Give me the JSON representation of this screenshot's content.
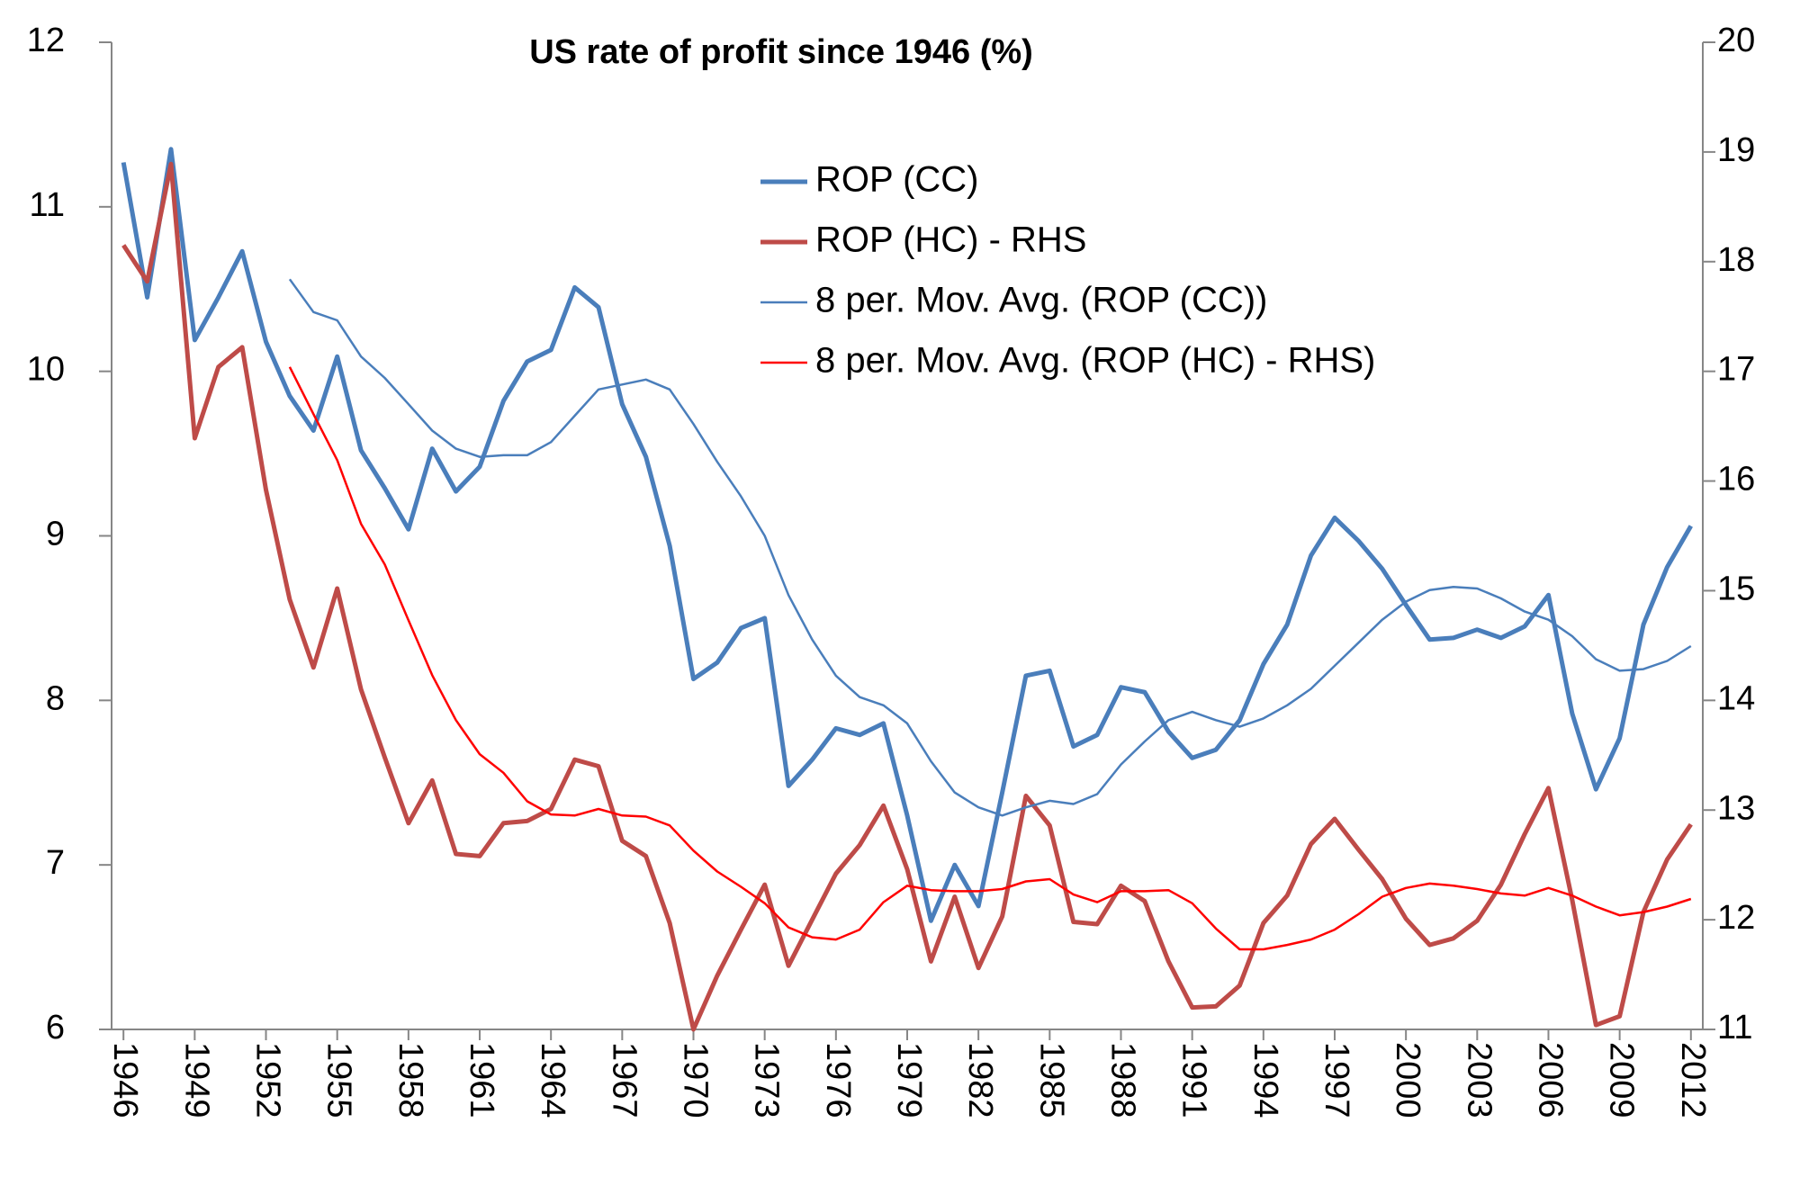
{
  "chart_data": {
    "type": "line",
    "title": "US rate of profit since 1946 (%)",
    "x": [
      1946,
      1947,
      1948,
      1949,
      1950,
      1951,
      1952,
      1953,
      1954,
      1955,
      1956,
      1957,
      1958,
      1959,
      1960,
      1961,
      1962,
      1963,
      1964,
      1965,
      1966,
      1967,
      1968,
      1969,
      1970,
      1971,
      1972,
      1973,
      1974,
      1975,
      1976,
      1977,
      1978,
      1979,
      1980,
      1981,
      1982,
      1983,
      1984,
      1985,
      1986,
      1987,
      1988,
      1989,
      1990,
      1991,
      1992,
      1993,
      1994,
      1995,
      1996,
      1997,
      1998,
      1999,
      2000,
      2001,
      2002,
      2003,
      2004,
      2005,
      2006,
      2007,
      2008,
      2009,
      2010,
      2011,
      2012
    ],
    "xlim": [
      1945.5,
      2012.5
    ],
    "xticks": [
      1946,
      1949,
      1952,
      1955,
      1958,
      1961,
      1964,
      1967,
      1970,
      1973,
      1976,
      1979,
      1982,
      1985,
      1988,
      1991,
      1994,
      1997,
      2000,
      2003,
      2006,
      2009,
      2012
    ],
    "ylim": [
      6,
      12
    ],
    "yticks": [
      6,
      7,
      8,
      9,
      10,
      11,
      12
    ],
    "y2lim": [
      11,
      20
    ],
    "y2ticks": [
      11,
      12,
      13,
      14,
      15,
      16,
      17,
      18,
      19,
      20
    ],
    "series": [
      {
        "name": "ROP (CC)",
        "color": "#4a7ebb",
        "width": 5,
        "values": [
          11.27,
          10.45,
          11.35,
          10.19,
          10.45,
          10.73,
          10.18,
          9.85,
          9.64,
          10.09,
          9.52,
          9.29,
          9.04,
          9.53,
          9.27,
          9.42,
          9.82,
          10.06,
          10.13,
          10.51,
          10.39,
          9.8,
          9.48,
          8.94,
          8.13,
          8.23,
          8.44,
          8.5,
          7.48,
          7.64,
          7.83,
          7.79,
          7.86,
          7.3,
          6.66,
          7.0,
          6.75,
          7.44,
          8.15,
          8.18,
          7.72,
          7.79,
          8.08,
          8.05,
          7.81,
          7.65,
          7.7,
          7.88,
          8.22,
          8.46,
          8.88,
          9.11,
          8.97,
          8.8,
          8.58,
          8.37,
          8.38,
          8.43,
          8.38,
          8.45,
          8.64,
          7.92,
          7.46,
          7.77,
          8.46,
          8.81,
          9.06
        ]
      },
      {
        "name": "ROP (HC) - RHS",
        "color": "#be4b48",
        "width": 5,
        "axis": "y2",
        "values": [
          18.15,
          17.82,
          18.89,
          16.39,
          17.04,
          17.22,
          15.92,
          14.92,
          14.3,
          15.02,
          14.1,
          13.48,
          12.88,
          13.27,
          12.6,
          12.58,
          12.88,
          12.9,
          13.01,
          13.46,
          13.4,
          12.72,
          12.58,
          11.97,
          11.0,
          11.49,
          11.91,
          12.32,
          11.58,
          12.0,
          12.42,
          12.68,
          13.04,
          12.46,
          11.62,
          12.21,
          11.56,
          12.03,
          13.13,
          12.86,
          11.98,
          11.96,
          12.31,
          12.17,
          11.62,
          11.2,
          11.21,
          11.4,
          11.97,
          12.22,
          12.69,
          12.92,
          12.64,
          12.37,
          12.01,
          11.77,
          11.83,
          11.99,
          12.32,
          12.78,
          13.2,
          12.18,
          11.04,
          11.12,
          12.07,
          12.55,
          12.87
        ]
      },
      {
        "name": "8 per. Mov. Avg. (ROP (CC))",
        "color": "#4a7ebb",
        "width": 2.5,
        "values": [
          null,
          null,
          null,
          null,
          null,
          null,
          null,
          10.56,
          10.36,
          10.31,
          10.09,
          9.96,
          9.8,
          9.64,
          9.53,
          9.48,
          9.49,
          9.49,
          9.57,
          9.73,
          9.89,
          9.92,
          9.95,
          9.89,
          9.68,
          9.45,
          9.24,
          9.0,
          8.64,
          8.37,
          8.15,
          8.02,
          7.97,
          7.86,
          7.63,
          7.44,
          7.35,
          7.3,
          7.35,
          7.39,
          7.37,
          7.43,
          7.61,
          7.75,
          7.88,
          7.93,
          7.88,
          7.84,
          7.89,
          7.97,
          8.07,
          8.21,
          8.35,
          8.49,
          8.6,
          8.67,
          8.69,
          8.68,
          8.62,
          8.54,
          8.49,
          8.39,
          8.25,
          8.18,
          8.19,
          8.24,
          8.33
        ]
      },
      {
        "name": "8 per. Mov. Avg. (ROP (HC) - RHS)",
        "color": "#ff0000",
        "width": 2.5,
        "axis": "y2",
        "values": [
          null,
          null,
          null,
          null,
          null,
          null,
          null,
          17.04,
          16.61,
          16.19,
          15.61,
          15.24,
          14.73,
          14.23,
          13.82,
          13.51,
          13.34,
          13.08,
          12.96,
          12.95,
          13.01,
          12.95,
          12.94,
          12.86,
          12.63,
          12.44,
          12.3,
          12.15,
          11.93,
          11.84,
          11.82,
          11.91,
          12.16,
          12.31,
          12.27,
          12.26,
          12.26,
          12.28,
          12.35,
          12.37,
          12.23,
          12.16,
          12.26,
          12.26,
          12.27,
          12.15,
          11.92,
          11.73,
          11.73,
          11.77,
          11.82,
          11.91,
          12.05,
          12.21,
          12.29,
          12.33,
          12.31,
          12.28,
          12.24,
          12.22,
          12.29,
          12.22,
          12.12,
          12.04,
          12.07,
          12.12,
          12.19
        ]
      }
    ]
  }
}
